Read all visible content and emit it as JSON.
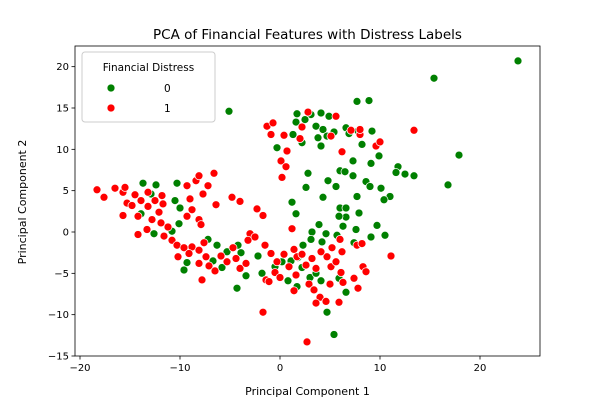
{
  "chart_data": {
    "type": "scatter",
    "title": "PCA of Financial Features with Distress Labels",
    "xlabel": "Principal Component 1",
    "ylabel": "Principal Component 2",
    "xlim": [
      -20.5,
      26
    ],
    "ylim": [
      -15,
      22.5
    ],
    "xticks": [
      -20,
      -10,
      0,
      10,
      20
    ],
    "yticks": [
      -15,
      -10,
      -5,
      0,
      5,
      10,
      15,
      20
    ],
    "grid": false,
    "legend": {
      "title": "Financial Distress",
      "placement": "top-left"
    },
    "series": [
      {
        "name": "0",
        "color": "#008000",
        "points": [
          [
            23.8,
            20.7
          ],
          [
            15.4,
            18.6
          ],
          [
            7.7,
            15.8
          ],
          [
            8.9,
            15.9
          ],
          [
            1.7,
            14.3
          ],
          [
            3.1,
            14.2
          ],
          [
            4.1,
            14.4
          ],
          [
            4.9,
            14.0
          ],
          [
            -5.1,
            14.6
          ],
          [
            1.6,
            13.3
          ],
          [
            2.5,
            13.6
          ],
          [
            3.6,
            12.8
          ],
          [
            6.6,
            12.6
          ],
          [
            7.8,
            12.2
          ],
          [
            9.2,
            12.2
          ],
          [
            4.3,
            12.4
          ],
          [
            5.4,
            12.1
          ],
          [
            1.3,
            11.8
          ],
          [
            3.8,
            11.4
          ],
          [
            4.7,
            11.6
          ],
          [
            6.9,
            11.9
          ],
          [
            2.2,
            10.8
          ],
          [
            8.2,
            10.6
          ],
          [
            4.1,
            10.4
          ],
          [
            -0.3,
            10.2
          ],
          [
            9.9,
            9.2
          ],
          [
            17.9,
            9.3
          ],
          [
            7.3,
            8.6
          ],
          [
            11.8,
            7.9
          ],
          [
            9.1,
            8.3
          ],
          [
            6.0,
            7.4
          ],
          [
            2.8,
            7.1
          ],
          [
            11.6,
            7.2
          ],
          [
            12.5,
            7.0
          ],
          [
            13.4,
            6.8
          ],
          [
            16.8,
            5.7
          ],
          [
            7.3,
            6.8
          ],
          [
            6.5,
            7.3
          ],
          [
            8.6,
            6.1
          ],
          [
            4.8,
            6.2
          ],
          [
            9.0,
            5.5
          ],
          [
            5.6,
            5.5
          ],
          [
            2.6,
            5.4
          ],
          [
            10.1,
            5.3
          ],
          [
            7.7,
            4.3
          ],
          [
            4.3,
            4.2
          ],
          [
            11.0,
            4.3
          ],
          [
            10.4,
            3.9
          ],
          [
            6.0,
            2.9
          ],
          [
            6.6,
            2.9
          ],
          [
            7.9,
            2.3
          ],
          [
            6.6,
            1.8
          ],
          [
            5.9,
            1.9
          ],
          [
            3.9,
            0.9
          ],
          [
            6.3,
            0.7
          ],
          [
            9.7,
            0.8
          ],
          [
            3.2,
            0.0
          ],
          [
            4.6,
            -0.2
          ],
          [
            7.6,
            0.3
          ],
          [
            10.5,
            -0.4
          ],
          [
            9.1,
            -0.6
          ],
          [
            5.7,
            -0.4
          ],
          [
            3.1,
            -0.9
          ],
          [
            2.3,
            -1.6
          ],
          [
            4.2,
            -1.2
          ],
          [
            7.4,
            -1.3
          ],
          [
            -10.3,
            5.9
          ],
          [
            -12.4,
            5.7
          ],
          [
            -13.7,
            5.9
          ],
          [
            -12.9,
            4.6
          ],
          [
            -10.5,
            3.8
          ],
          [
            -10.0,
            2.9
          ],
          [
            -10.1,
            1.0
          ],
          [
            -10.8,
            0.1
          ],
          [
            -13.9,
            2.2
          ],
          [
            -12.6,
            -0.2
          ],
          [
            -9.3,
            -3.7
          ],
          [
            -9.6,
            -4.6
          ],
          [
            -7.2,
            -0.9
          ],
          [
            -6.3,
            -1.6
          ],
          [
            -5.3,
            -2.4
          ],
          [
            -6.7,
            -3.5
          ],
          [
            -4.2,
            -1.6
          ],
          [
            -3.9,
            -2.5
          ],
          [
            -3.4,
            -5.3
          ],
          [
            -4.3,
            -6.8
          ],
          [
            -5.8,
            -4.3
          ],
          [
            -1.8,
            -5.0
          ],
          [
            -0.5,
            -4.2
          ],
          [
            0.2,
            -3.6
          ],
          [
            1.1,
            -3.5
          ],
          [
            1.8,
            -3.1
          ],
          [
            2.2,
            -4.3
          ],
          [
            3.0,
            -5.5
          ],
          [
            0.8,
            -5.9
          ],
          [
            1.7,
            -6.6
          ],
          [
            3.6,
            -5.0
          ],
          [
            4.1,
            -5.9
          ],
          [
            5.9,
            -5.6
          ],
          [
            6.6,
            -7.3
          ],
          [
            4.7,
            -9.7
          ],
          [
            5.4,
            -12.4
          ],
          [
            -2.2,
            -2.9
          ],
          [
            1.2,
            3.6
          ],
          [
            1.6,
            2.2
          ]
        ]
      },
      {
        "name": "1",
        "color": "#ff0000",
        "points": [
          [
            -18.3,
            5.1
          ],
          [
            -17.6,
            4.2
          ],
          [
            -16.5,
            5.3
          ],
          [
            -15.7,
            4.8
          ],
          [
            -15.5,
            5.4
          ],
          [
            -14.5,
            4.5
          ],
          [
            -15.3,
            3.5
          ],
          [
            -14.8,
            3.2
          ],
          [
            -13.9,
            3.8
          ],
          [
            -13.2,
            4.8
          ],
          [
            -12.5,
            3.8
          ],
          [
            -11.8,
            4.4
          ],
          [
            -13.2,
            3.1
          ],
          [
            -12.1,
            2.4
          ],
          [
            -11.7,
            3.4
          ],
          [
            -15.7,
            2.0
          ],
          [
            -14.2,
            1.9
          ],
          [
            -12.8,
            1.5
          ],
          [
            -11.9,
            1.1
          ],
          [
            -13.3,
            0.3
          ],
          [
            -14.2,
            -0.3
          ],
          [
            -11.6,
            -0.5
          ],
          [
            -11.2,
            0.6
          ],
          [
            -10.8,
            -1.0
          ],
          [
            -10.3,
            -1.6
          ],
          [
            -9.6,
            -1.9
          ],
          [
            -8.8,
            -1.8
          ],
          [
            -8.1,
            -2.2
          ],
          [
            -7.6,
            -1.3
          ],
          [
            -9.1,
            -2.6
          ],
          [
            -9.3,
            1.9
          ],
          [
            -8.8,
            2.7
          ],
          [
            -8.1,
            1.5
          ],
          [
            -7.9,
            0.9
          ],
          [
            -9.0,
            4.0
          ],
          [
            -8.4,
            6.2
          ],
          [
            -9.3,
            5.6
          ],
          [
            -8.1,
            6.8
          ],
          [
            -7.2,
            5.6
          ],
          [
            -7.7,
            4.6
          ],
          [
            -6.6,
            7.1
          ],
          [
            -6.4,
            3.3
          ],
          [
            -7.4,
            -3.0
          ],
          [
            -8.1,
            -3.8
          ],
          [
            -7.8,
            -5.8
          ],
          [
            -7.1,
            -4.1
          ],
          [
            -6.5,
            -4.7
          ],
          [
            -5.9,
            -2.9
          ],
          [
            -5.3,
            -3.6
          ],
          [
            -4.7,
            -1.9
          ],
          [
            -4.4,
            -3.2
          ],
          [
            -4.0,
            -4.4
          ],
          [
            -3.4,
            -3.8
          ],
          [
            -4.8,
            4.2
          ],
          [
            -4.0,
            3.7
          ],
          [
            -3.0,
            -0.2
          ],
          [
            -2.3,
            2.8
          ],
          [
            -1.7,
            2.0
          ],
          [
            -1.5,
            -1.6
          ],
          [
            -1.4,
            -5.8
          ],
          [
            -0.9,
            -2.6
          ],
          [
            -0.3,
            -3.6
          ],
          [
            -0.5,
            -4.9
          ],
          [
            -1.1,
            -6.0
          ],
          [
            -1.7,
            -9.7
          ],
          [
            0.0,
            -5.5
          ],
          [
            0.4,
            -2.7
          ],
          [
            0.9,
            -4.2
          ],
          [
            1.4,
            -2.1
          ],
          [
            1.7,
            -3.0
          ],
          [
            2.2,
            -2.7
          ],
          [
            1.6,
            -5.2
          ],
          [
            2.6,
            -4.0
          ],
          [
            3.2,
            -3.2
          ],
          [
            3.6,
            -4.4
          ],
          [
            2.9,
            -6.3
          ],
          [
            3.4,
            -7.0
          ],
          [
            4.0,
            -7.9
          ],
          [
            3.6,
            -8.6
          ],
          [
            4.6,
            -8.4
          ],
          [
            2.7,
            -13.3
          ],
          [
            1.4,
            -7.1
          ],
          [
            5.1,
            -4.2
          ],
          [
            5.6,
            -3.6
          ],
          [
            6.1,
            -4.9
          ],
          [
            5.0,
            -6.3
          ],
          [
            6.3,
            -6.1
          ],
          [
            7.4,
            -5.6
          ],
          [
            7.8,
            -6.8
          ],
          [
            8.3,
            -4.2
          ],
          [
            8.6,
            -4.8
          ],
          [
            5.9,
            -8.5
          ],
          [
            4.7,
            -3.0
          ],
          [
            4.1,
            -2.4
          ],
          [
            5.2,
            -1.9
          ],
          [
            6.2,
            -2.4
          ],
          [
            7.7,
            -1.6
          ],
          [
            8.2,
            -1.4
          ],
          [
            6.0,
            -0.9
          ],
          [
            11.1,
            -2.9
          ],
          [
            0.2,
            6.6
          ],
          [
            0.1,
            8.6
          ],
          [
            0.6,
            7.9
          ],
          [
            0.7,
            9.8
          ],
          [
            0.4,
            11.7
          ],
          [
            2.0,
            11.3
          ],
          [
            2.2,
            12.7
          ],
          [
            -0.9,
            11.8
          ],
          [
            -1.3,
            12.8
          ],
          [
            2.8,
            14.5
          ],
          [
            5.1,
            11.6
          ],
          [
            5.6,
            14.0
          ],
          [
            7.1,
            12.3
          ],
          [
            8.0,
            11.8
          ],
          [
            9.6,
            10.4
          ],
          [
            10.0,
            10.9
          ],
          [
            13.4,
            12.3
          ],
          [
            8.0,
            12.4
          ],
          [
            6.2,
            9.7
          ],
          [
            -0.7,
            13.2
          ],
          [
            -3.2,
            -1.0
          ],
          [
            -2.5,
            -0.6
          ],
          [
            1.2,
            0.4
          ],
          [
            -10.2,
            -3.0
          ]
        ]
      }
    ]
  }
}
